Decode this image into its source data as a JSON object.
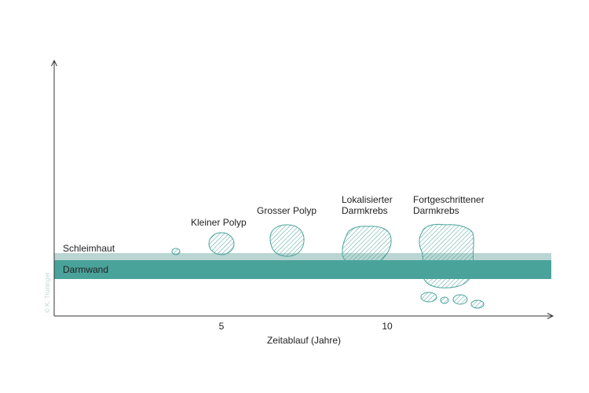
{
  "colors": {
    "mucosa": "#b9d6d3",
    "wall": "#4aa39a",
    "hatch": "#4aa39a",
    "axis": "#333333"
  },
  "layers": {
    "mucosa_label": "Schleimhaut",
    "wall_label": "Darmwand"
  },
  "axis": {
    "x_label": "Zeitablauf (Jahre)",
    "ticks": [
      "5",
      "10"
    ]
  },
  "stages": {
    "small_polyp": "Kleiner Polyp",
    "large_polyp": "Grosser Polyp",
    "localized_line1": "Lokalisierter",
    "localized_line2": "Darmkrebs",
    "advanced_line1": "Fortgeschrittener",
    "advanced_line2": "Darmkrebs"
  },
  "credit": "© K. Truninger"
}
